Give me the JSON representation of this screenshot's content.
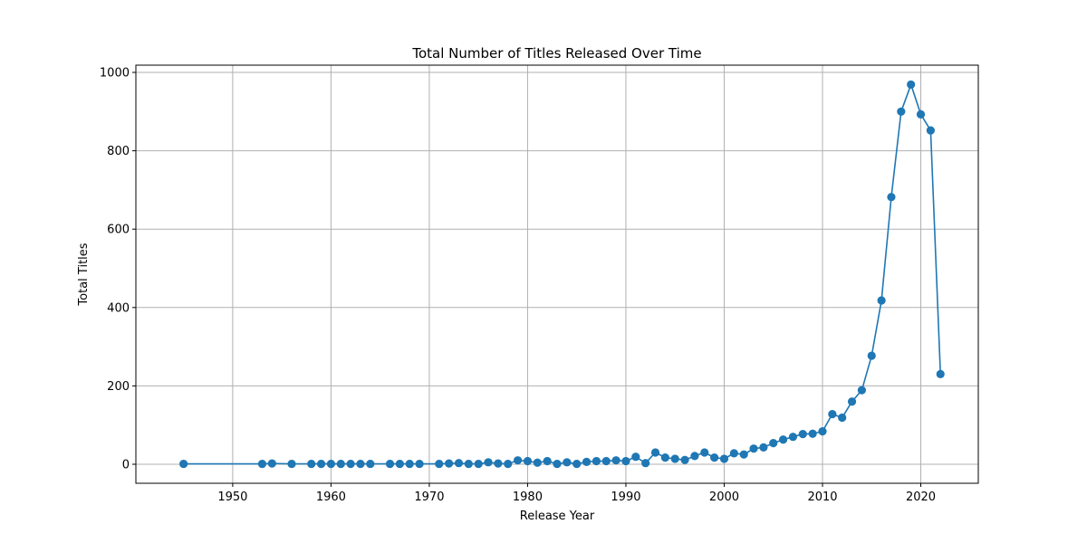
{
  "chart_data": {
    "type": "line",
    "title": "Total Number of Titles Released Over Time",
    "xlabel": "Release Year",
    "ylabel": "Total Titles",
    "xlim": [
      1940.15,
      2025.85
    ],
    "ylim": [
      -48.5,
      1018.5
    ],
    "xticks": [
      1950,
      1960,
      1970,
      1980,
      1990,
      2000,
      2010,
      2020
    ],
    "yticks": [
      0,
      200,
      400,
      600,
      800,
      1000
    ],
    "grid": true,
    "marker": "circle",
    "color": "#1f77b4",
    "series": [
      {
        "x": [
          1945,
          1953,
          1954,
          1956,
          1958,
          1959,
          1960,
          1961,
          1962,
          1963,
          1964,
          1966,
          1967,
          1968,
          1969,
          1971,
          1972,
          1973,
          1974,
          1975,
          1976,
          1977,
          1978,
          1979,
          1980,
          1981,
          1982,
          1983,
          1984,
          1985,
          1986,
          1987,
          1988,
          1989,
          1990,
          1991,
          1992,
          1993,
          1994,
          1995,
          1996,
          1997,
          1998,
          1999,
          2000,
          2001,
          2002,
          2003,
          2004,
          2005,
          2006,
          2007,
          2008,
          2009,
          2010,
          2011,
          2012,
          2013,
          2014,
          2015,
          2016,
          2017,
          2018,
          2019,
          2020,
          2021,
          2022
        ],
        "values": [
          1,
          1,
          2,
          1,
          1,
          1,
          1,
          1,
          1,
          1,
          1,
          1,
          1,
          1,
          1,
          1,
          2,
          3,
          1,
          1,
          5,
          2,
          1,
          10,
          8,
          4,
          8,
          1,
          5,
          1,
          6,
          8,
          8,
          10,
          8,
          19,
          3,
          30,
          17,
          14,
          11,
          21,
          30,
          17,
          14,
          28,
          25,
          40,
          43,
          54,
          63,
          70,
          77,
          78,
          84,
          128,
          119,
          160,
          189,
          277,
          418,
          682,
          900,
          969,
          893,
          852,
          230
        ]
      }
    ]
  }
}
